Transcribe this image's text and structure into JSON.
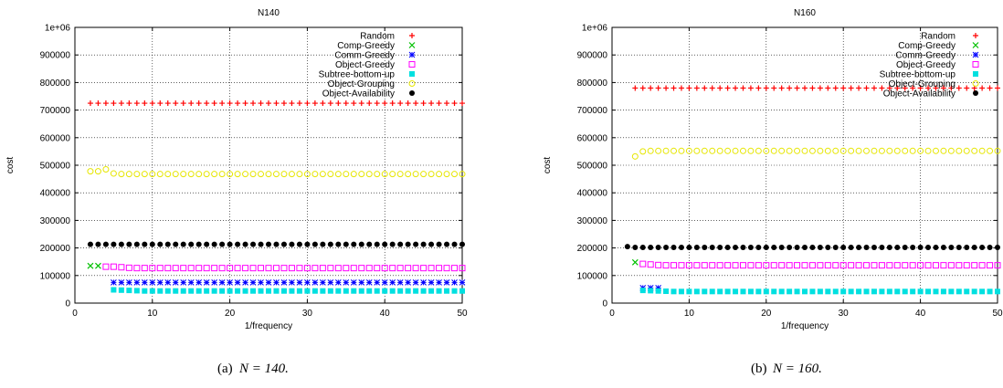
{
  "figure": {
    "captions": [
      {
        "label": "(a)",
        "math": "N = 140."
      },
      {
        "label": "(b)",
        "math": "N = 160."
      }
    ]
  },
  "chart_data": [
    {
      "type": "scatter",
      "title": "N140",
      "xlabel": "1/frequency",
      "ylabel": "cost",
      "xlim": [
        0,
        50
      ],
      "ylim": [
        0,
        1000000
      ],
      "xticks": [
        "0",
        "10",
        "20",
        "30",
        "40",
        "50"
      ],
      "yticks": [
        "0",
        "100000",
        "200000",
        "300000",
        "400000",
        "500000",
        "600000",
        "700000",
        "800000",
        "900000",
        "1e+06"
      ],
      "grid": true,
      "legend_position": "top-right",
      "series": [
        {
          "name": "Random",
          "marker": "plus",
          "color": "#ff0000",
          "x_from": 2,
          "x_to": 50,
          "values": [
            725000
          ]
        },
        {
          "name": "Comp-Greedy",
          "marker": "x",
          "color": "#00c000",
          "x": [
            2,
            3
          ],
          "values": [
            135000,
            135000
          ]
        },
        {
          "name": "Comm-Greedy",
          "marker": "star",
          "color": "#0000ff",
          "x_from": 5,
          "x_to": 50,
          "values": [
            75000
          ]
        },
        {
          "name": "Object-Greedy",
          "marker": "square",
          "color": "#ff00ff",
          "x_from": 4,
          "x_to": 50,
          "values": [
            132000,
            132000,
            130000,
            128000,
            127000
          ]
        },
        {
          "name": "Subtree-bottom-up",
          "marker": "filled-square",
          "color": "#00e0e0",
          "x_from": 5,
          "x_to": 50,
          "values": [
            48000,
            47000,
            46000,
            45000,
            44000
          ]
        },
        {
          "name": "Object-Grouping",
          "marker": "circle",
          "color": "#e6e600",
          "x_from": 2,
          "x_to": 50,
          "values": [
            478000,
            478000,
            485000,
            470000,
            468000
          ]
        },
        {
          "name": "Object-Availability",
          "marker": "filled-circle",
          "color": "#000000",
          "x_from": 2,
          "x_to": 50,
          "values": [
            213000
          ]
        }
      ]
    },
    {
      "type": "scatter",
      "title": "N160",
      "xlabel": "1/frequency",
      "ylabel": "cost",
      "xlim": [
        0,
        50
      ],
      "ylim": [
        0,
        1000000
      ],
      "xticks": [
        "0",
        "10",
        "20",
        "30",
        "40",
        "50"
      ],
      "yticks": [
        "0",
        "100000",
        "200000",
        "300000",
        "400000",
        "500000",
        "600000",
        "700000",
        "800000",
        "900000",
        "1e+06"
      ],
      "grid": true,
      "legend_position": "top-right",
      "series": [
        {
          "name": "Random",
          "marker": "plus",
          "color": "#ff0000",
          "x_from": 3,
          "x_to": 50,
          "values": [
            780000
          ]
        },
        {
          "name": "Comp-Greedy",
          "marker": "x",
          "color": "#00c000",
          "x": [
            3
          ],
          "values": [
            148000
          ]
        },
        {
          "name": "Comm-Greedy",
          "marker": "star",
          "color": "#0000ff",
          "x": [
            4,
            5,
            6
          ],
          "values": [
            55000,
            55000,
            55000
          ]
        },
        {
          "name": "Object-Greedy",
          "marker": "square",
          "color": "#ff00ff",
          "x_from": 4,
          "x_to": 50,
          "values": [
            142000,
            140000,
            138000,
            137000,
            137000
          ]
        },
        {
          "name": "Subtree-bottom-up",
          "marker": "filled-square",
          "color": "#00e0e0",
          "x_from": 4,
          "x_to": 50,
          "values": [
            46000,
            45000,
            44000,
            43000,
            42000
          ]
        },
        {
          "name": "Object-Grouping",
          "marker": "circle",
          "color": "#e6e600",
          "x_from": 3,
          "x_to": 50,
          "values": [
            532000,
            550000,
            552000,
            552000,
            552000
          ]
        },
        {
          "name": "Object-Availability",
          "marker": "filled-circle",
          "color": "#000000",
          "x_from": 2,
          "x_to": 50,
          "values": [
            205000,
            202000,
            202000,
            202000,
            202000
          ]
        }
      ]
    }
  ]
}
